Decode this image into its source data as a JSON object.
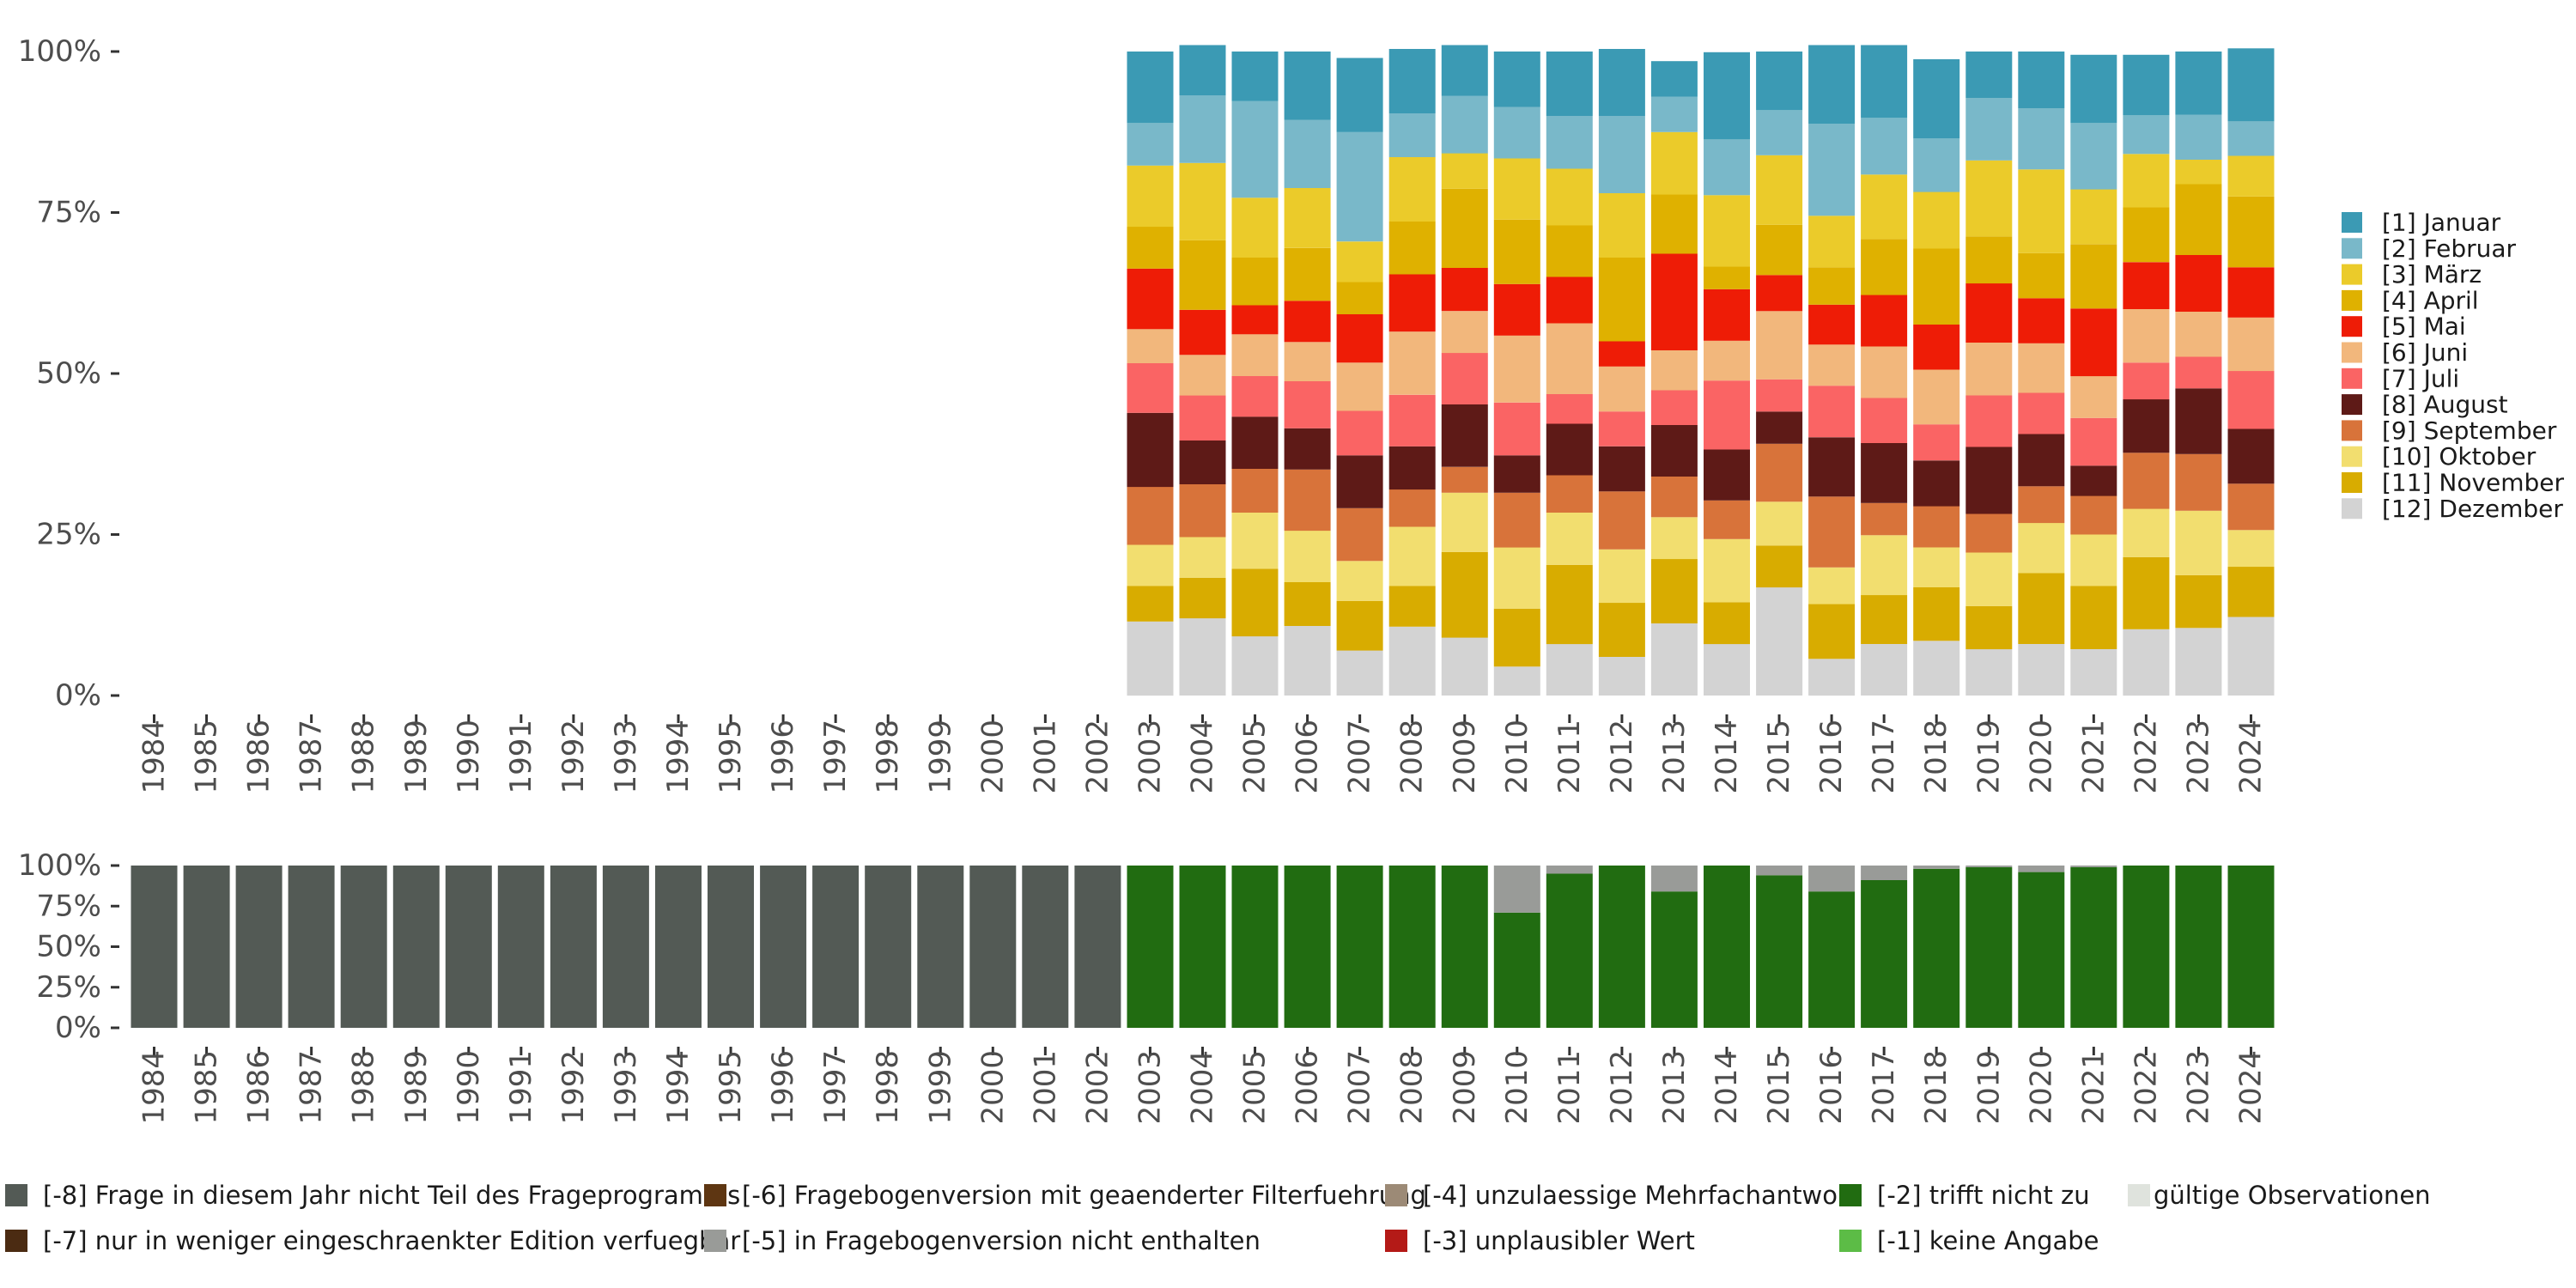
{
  "chart_data": [
    {
      "type": "bar",
      "stacked": "percent",
      "title": "",
      "xlabel": "",
      "ylabel": "",
      "ylim": [
        0,
        1
      ],
      "y_ticks": [
        "0%",
        "25%",
        "50%",
        "75%",
        "100%"
      ],
      "categories": [
        "1984",
        "1985",
        "1986",
        "1987",
        "1988",
        "1989",
        "1990",
        "1991",
        "1992",
        "1993",
        "1994",
        "1995",
        "1996",
        "1997",
        "1998",
        "1999",
        "2000",
        "2001",
        "2002",
        "2003",
        "2004",
        "2005",
        "2006",
        "2007",
        "2008",
        "2009",
        "2010",
        "2011",
        "2012",
        "2013",
        "2014",
        "2015",
        "2016",
        "2017",
        "2018",
        "2019",
        "2020",
        "2021",
        "2022",
        "2023",
        "2024"
      ],
      "legend_position": "right",
      "series": [
        {
          "name": "[12] Dezember",
          "color": "#d3d3d3",
          "values": [
            0,
            0,
            0,
            0,
            0,
            0,
            0,
            0,
            0,
            0,
            0,
            0,
            0,
            0,
            0,
            0,
            0,
            0,
            0,
            0.115,
            0.12,
            0.092,
            0.108,
            0.07,
            0.107,
            0.09,
            0.045,
            0.08,
            0.06,
            0.112,
            0.08,
            0.168,
            0.057,
            0.08,
            0.085,
            0.072,
            0.08,
            0.072,
            0.103,
            0.105,
            0.122
          ]
        },
        {
          "name": "[11] November",
          "color": "#d8ac00",
          "values": [
            0,
            0,
            0,
            0,
            0,
            0,
            0,
            0,
            0,
            0,
            0,
            0,
            0,
            0,
            0,
            0,
            0,
            0,
            0,
            0.055,
            0.063,
            0.105,
            0.068,
            0.077,
            0.063,
            0.133,
            0.09,
            0.123,
            0.084,
            0.1,
            0.065,
            0.065,
            0.085,
            0.076,
            0.083,
            0.067,
            0.11,
            0.098,
            0.112,
            0.082,
            0.078
          ]
        },
        {
          "name": "[10] Oktober",
          "color": "#f2de6f",
          "values": [
            0,
            0,
            0,
            0,
            0,
            0,
            0,
            0,
            0,
            0,
            0,
            0,
            0,
            0,
            0,
            0,
            0,
            0,
            0,
            0.064,
            0.063,
            0.087,
            0.08,
            0.062,
            0.092,
            0.092,
            0.095,
            0.081,
            0.083,
            0.065,
            0.098,
            0.068,
            0.057,
            0.093,
            0.062,
            0.083,
            0.078,
            0.08,
            0.075,
            0.1,
            0.057
          ]
        },
        {
          "name": "[9] September",
          "color": "#d8733a",
          "values": [
            0,
            0,
            0,
            0,
            0,
            0,
            0,
            0,
            0,
            0,
            0,
            0,
            0,
            0,
            0,
            0,
            0,
            0,
            0,
            0.09,
            0.082,
            0.068,
            0.095,
            0.082,
            0.058,
            0.04,
            0.085,
            0.058,
            0.09,
            0.063,
            0.06,
            0.09,
            0.11,
            0.05,
            0.064,
            0.06,
            0.057,
            0.06,
            0.087,
            0.088,
            0.072
          ]
        },
        {
          "name": "[8] August",
          "color": "#5e1a17",
          "values": [
            0,
            0,
            0,
            0,
            0,
            0,
            0,
            0,
            0,
            0,
            0,
            0,
            0,
            0,
            0,
            0,
            0,
            0,
            0,
            0.115,
            0.068,
            0.081,
            0.064,
            0.082,
            0.067,
            0.097,
            0.058,
            0.08,
            0.07,
            0.08,
            0.079,
            0.05,
            0.092,
            0.093,
            0.071,
            0.104,
            0.081,
            0.047,
            0.083,
            0.102,
            0.085
          ]
        },
        {
          "name": "[7] Juli",
          "color": "#fa6464",
          "values": [
            0,
            0,
            0,
            0,
            0,
            0,
            0,
            0,
            0,
            0,
            0,
            0,
            0,
            0,
            0,
            0,
            0,
            0,
            0,
            0.077,
            0.07,
            0.063,
            0.073,
            0.069,
            0.08,
            0.08,
            0.082,
            0.046,
            0.054,
            0.054,
            0.107,
            0.05,
            0.08,
            0.07,
            0.056,
            0.08,
            0.064,
            0.074,
            0.057,
            0.049,
            0.09
          ]
        },
        {
          "name": "[6] Juni",
          "color": "#f2b77c",
          "values": [
            0,
            0,
            0,
            0,
            0,
            0,
            0,
            0,
            0,
            0,
            0,
            0,
            0,
            0,
            0,
            0,
            0,
            0,
            0,
            0.053,
            0.063,
            0.065,
            0.061,
            0.075,
            0.098,
            0.065,
            0.104,
            0.11,
            0.07,
            0.062,
            0.062,
            0.106,
            0.064,
            0.08,
            0.085,
            0.082,
            0.077,
            0.065,
            0.083,
            0.07,
            0.083
          ]
        },
        {
          "name": "[5] Mai",
          "color": "#ee1c06",
          "values": [
            0,
            0,
            0,
            0,
            0,
            0,
            0,
            0,
            0,
            0,
            0,
            0,
            0,
            0,
            0,
            0,
            0,
            0,
            0,
            0.094,
            0.07,
            0.045,
            0.064,
            0.075,
            0.089,
            0.067,
            0.08,
            0.072,
            0.039,
            0.15,
            0.08,
            0.056,
            0.062,
            0.08,
            0.07,
            0.092,
            0.07,
            0.105,
            0.073,
            0.088,
            0.078
          ]
        },
        {
          "name": "[4] April",
          "color": "#dfb100",
          "values": [
            0,
            0,
            0,
            0,
            0,
            0,
            0,
            0,
            0,
            0,
            0,
            0,
            0,
            0,
            0,
            0,
            0,
            0,
            0,
            0.065,
            0.108,
            0.074,
            0.082,
            0.05,
            0.082,
            0.123,
            0.1,
            0.08,
            0.13,
            0.092,
            0.035,
            0.078,
            0.058,
            0.087,
            0.118,
            0.073,
            0.07,
            0.1,
            0.085,
            0.11,
            0.11
          ]
        },
        {
          "name": "[3] März",
          "color": "#ebcb2a",
          "values": [
            0,
            0,
            0,
            0,
            0,
            0,
            0,
            0,
            0,
            0,
            0,
            0,
            0,
            0,
            0,
            0,
            0,
            0,
            0,
            0.095,
            0.12,
            0.093,
            0.093,
            0.063,
            0.1,
            0.055,
            0.095,
            0.088,
            0.1,
            0.097,
            0.111,
            0.108,
            0.08,
            0.1,
            0.088,
            0.118,
            0.13,
            0.085,
            0.083,
            0.038,
            0.063
          ]
        },
        {
          "name": "[2] Februar",
          "color": "#79b8c9",
          "values": [
            0,
            0,
            0,
            0,
            0,
            0,
            0,
            0,
            0,
            0,
            0,
            0,
            0,
            0,
            0,
            0,
            0,
            0,
            0,
            0.066,
            0.105,
            0.15,
            0.106,
            0.17,
            0.068,
            0.089,
            0.08,
            0.082,
            0.12,
            0.055,
            0.087,
            0.07,
            0.143,
            0.088,
            0.083,
            0.097,
            0.095,
            0.103,
            0.06,
            0.07,
            0.054
          ]
        },
        {
          "name": "[1] Januar",
          "color": "#3b9ab4",
          "values": [
            0,
            0,
            0,
            0,
            0,
            0,
            0,
            0,
            0,
            0,
            0,
            0,
            0,
            0,
            0,
            0,
            0,
            0,
            0,
            0.111,
            0.078,
            0.077,
            0.106,
            0.115,
            0.1,
            0.079,
            0.086,
            0.1,
            0.104,
            0.055,
            0.135,
            0.091,
            0.122,
            0.113,
            0.123,
            0.072,
            0.088,
            0.106,
            0.094,
            0.098,
            0.113
          ]
        }
      ]
    },
    {
      "type": "bar",
      "stacked": "percent",
      "title": "",
      "xlabel": "",
      "ylabel": "",
      "ylim": [
        0,
        1
      ],
      "y_ticks": [
        "0%",
        "25%",
        "50%",
        "75%",
        "100%"
      ],
      "categories": [
        "1984",
        "1985",
        "1986",
        "1987",
        "1988",
        "1989",
        "1990",
        "1991",
        "1992",
        "1993",
        "1994",
        "1995",
        "1996",
        "1997",
        "1998",
        "1999",
        "2000",
        "2001",
        "2002",
        "2003",
        "2004",
        "2005",
        "2006",
        "2007",
        "2008",
        "2009",
        "2010",
        "2011",
        "2012",
        "2013",
        "2014",
        "2015",
        "2016",
        "2017",
        "2018",
        "2019",
        "2020",
        "2021",
        "2022",
        "2023",
        "2024"
      ],
      "legend_position": "bottom",
      "series": [
        {
          "name": "[-8] Frage in diesem Jahr nicht Teil des Frageprogramms",
          "color": "#535a55",
          "values": [
            1,
            1,
            1,
            1,
            1,
            1,
            1,
            1,
            1,
            1,
            1,
            1,
            1,
            1,
            1,
            1,
            1,
            1,
            1,
            0,
            0,
            0,
            0,
            0,
            0,
            0,
            0,
            0,
            0,
            0,
            0,
            0,
            0,
            0,
            0,
            0,
            0,
            0,
            0,
            0,
            0
          ]
        },
        {
          "name": "[-2] trifft nicht zu",
          "color": "#216c11",
          "values": [
            0,
            0,
            0,
            0,
            0,
            0,
            0,
            0,
            0,
            0,
            0,
            0,
            0,
            0,
            0,
            0,
            0,
            0,
            0,
            1,
            1,
            1,
            1,
            1,
            1,
            1,
            0.71,
            0.95,
            1,
            0.84,
            1,
            0.94,
            0.84,
            0.91,
            0.98,
            0.99,
            0.96,
            0.99,
            1,
            1,
            1
          ]
        },
        {
          "name": "[-5] in Fragebogenversion nicht enthalten",
          "color": "#999b98",
          "values": [
            0,
            0,
            0,
            0,
            0,
            0,
            0,
            0,
            0,
            0,
            0,
            0,
            0,
            0,
            0,
            0,
            0,
            0,
            0,
            0,
            0,
            0,
            0,
            0,
            0,
            0,
            0.29,
            0.05,
            0,
            0.16,
            0,
            0.06,
            0.16,
            0.09,
            0.02,
            0.01,
            0.04,
            0.01,
            0,
            0,
            0
          ]
        }
      ]
    }
  ],
  "legend_bottom": [
    {
      "label": "[-8] Frage in diesem Jahr nicht Teil des Frageprogramms",
      "color": "#535a55"
    },
    {
      "label": "[-7] nur in weniger eingeschraenkter Edition verfuegbar",
      "color": "#4b2b12"
    },
    {
      "label": "[-6] Fragebogenversion mit geaenderter Filterfuehrung",
      "color": "#5e3612"
    },
    {
      "label": "[-5] in Fragebogenversion nicht enthalten",
      "color": "#999b98"
    },
    {
      "label": "[-4] unzulaessige Mehrfachantwort",
      "color": "#9c8a76"
    },
    {
      "label": "[-3] unplausibler Wert",
      "color": "#b41a17"
    },
    {
      "label": "[-2] trifft nicht zu",
      "color": "#216c11"
    },
    {
      "label": "[-1] keine Angabe",
      "color": "#5cbc46"
    },
    {
      "label": "gültige Observationen",
      "color": "#dfe3dd"
    }
  ]
}
